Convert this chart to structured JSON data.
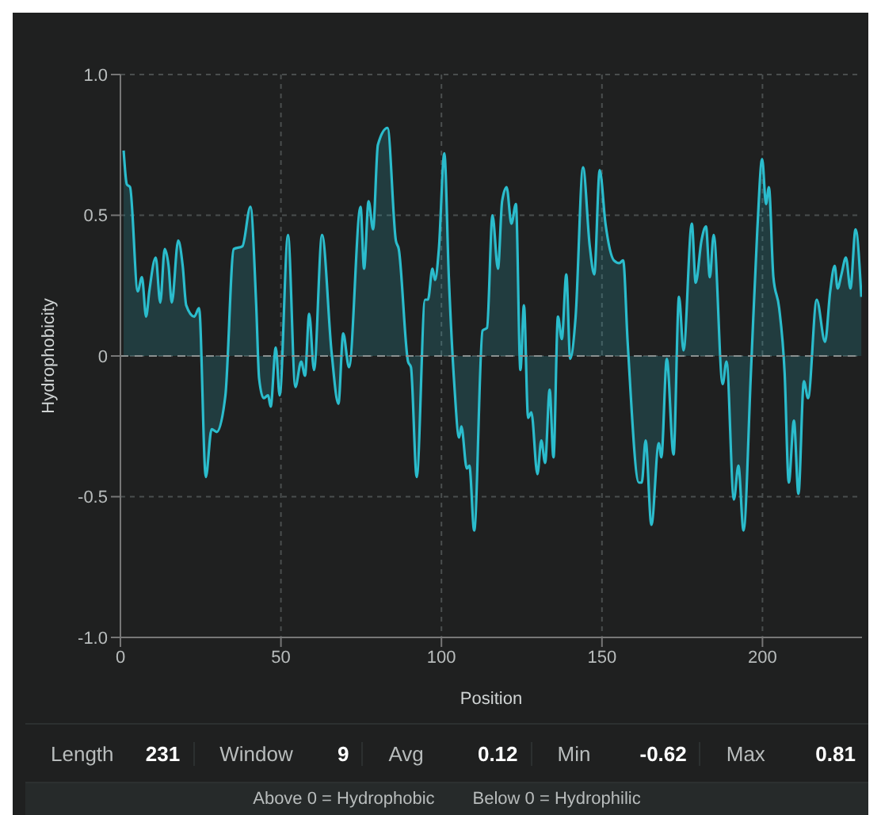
{
  "chart_data": {
    "type": "area",
    "xlabel": "Position",
    "ylabel": "Hydrophobicity",
    "x": [
      1,
      2,
      3,
      5.4,
      6.7,
      8,
      9,
      11,
      12.4,
      13.8,
      15,
      16,
      18,
      19.4,
      20.5,
      23,
      24.5,
      26.6,
      28.4,
      30,
      32.7,
      35.3,
      38,
      40.5,
      42.3,
      43.2,
      44.6,
      46,
      46.8,
      48.4,
      49.6,
      52.2,
      54.5,
      56.3,
      57.5,
      58.8,
      60.3,
      62.8,
      65.8,
      67.9,
      69.4,
      71.2,
      74.8,
      75.9,
      77.3,
      78.7,
      80.2,
      83.2,
      85.8,
      86.7,
      89.6,
      90.5,
      92.3,
      94.9,
      95.8,
      97.2,
      98,
      99.2,
      100.9,
      102.3,
      104,
      105.5,
      106.2,
      107.9,
      108.7,
      110.2,
      112.8,
      114.2,
      115.9,
      117.6,
      118.9,
      120.3,
      121.8,
      123.2,
      124.6,
      125.7,
      127,
      128,
      129.9,
      131.1,
      132.3,
      133.7,
      134.9,
      136.3,
      137.5,
      138.9,
      140.1,
      141.8,
      144.1,
      146.2,
      147.6,
      149.3,
      151.1,
      153.7,
      155.4,
      156.6,
      158,
      161.5,
      162.4,
      163.6,
      165.4,
      167.7,
      168.5,
      170.2,
      172.3,
      174,
      175.4,
      178,
      179.2,
      181,
      182.4,
      183.6,
      184.8,
      187.6,
      188.8,
      191.1,
      192.5,
      194.1,
      196.4,
      198.4,
      199.9,
      201.1,
      202,
      203.4,
      205.2,
      206.9,
      208.2,
      209.8,
      211.2,
      212.9,
      214.2,
      216.9,
      219.5,
      221.1,
      222.5,
      223.4,
      224.6,
      226,
      227.4,
      229,
      230.8
    ],
    "series": [
      {
        "color": "#2bbccc",
        "values": [
          0.73,
          0.61,
          0.6,
          0.23,
          0.28,
          0.14,
          0.23,
          0.35,
          0.19,
          0.38,
          0.32,
          0.19,
          0.41,
          0.32,
          0.18,
          0.14,
          0.17,
          -0.43,
          -0.26,
          -0.27,
          -0.14,
          0.38,
          0.39,
          0.53,
          0.18,
          -0.08,
          -0.15,
          -0.14,
          -0.18,
          0.03,
          -0.14,
          0.43,
          -0.11,
          -0.02,
          -0.07,
          0.15,
          -0.05,
          0.43,
          0.01,
          -0.17,
          0.08,
          -0.04,
          0.53,
          0.31,
          0.55,
          0.45,
          0.75,
          0.81,
          0.41,
          0.38,
          -0.02,
          -0.04,
          -0.43,
          0.2,
          0.2,
          0.31,
          0.27,
          0.38,
          0.72,
          0.28,
          -0.1,
          -0.29,
          -0.25,
          -0.4,
          -0.39,
          -0.62,
          0.09,
          0.1,
          0.5,
          0.31,
          0.55,
          0.6,
          0.47,
          0.54,
          -0.05,
          0.18,
          -0.22,
          -0.2,
          -0.42,
          -0.3,
          -0.38,
          -0.12,
          -0.36,
          0.14,
          0.06,
          0.29,
          -0.01,
          0.14,
          0.67,
          0.39,
          0.29,
          0.66,
          0.47,
          0.34,
          0.33,
          0.34,
          0.05,
          -0.45,
          -0.45,
          -0.3,
          -0.6,
          -0.31,
          -0.36,
          -0.01,
          -0.35,
          0.21,
          0.02,
          0.47,
          0.26,
          0.41,
          0.46,
          0.28,
          0.43,
          -0.1,
          -0.02,
          -0.51,
          -0.39,
          -0.62,
          -0.06,
          0.45,
          0.7,
          0.54,
          0.6,
          0.28,
          0.17,
          -0.06,
          -0.45,
          -0.23,
          -0.49,
          -0.09,
          -0.15,
          0.2,
          0.05,
          0.23,
          0.32,
          0.24,
          0.29,
          0.35,
          0.24,
          0.45,
          0.21
        ]
      }
    ],
    "xlim": [
      0,
      231
    ],
    "xticks": [
      0,
      50,
      100,
      150,
      200
    ],
    "ylim": [
      -1,
      1
    ],
    "yticks": [
      {
        "value": -1,
        "label": "-1.0"
      },
      -0.5,
      0,
      0.5,
      {
        "value": 1,
        "label": "1.0"
      }
    ],
    "grid": true,
    "ref_lines": [
      {
        "axis": "y",
        "value": 0,
        "line_style": "dashed",
        "color": "#8a9090"
      }
    ],
    "annotations": [
      "Length",
      "231",
      "Window",
      "9",
      "Avg",
      "0.12",
      "Min",
      "-0.62",
      "Max",
      "0.81",
      "Above 0 = Hydrophobic",
      "Below 0 = Hydrophilic"
    ]
  }
}
